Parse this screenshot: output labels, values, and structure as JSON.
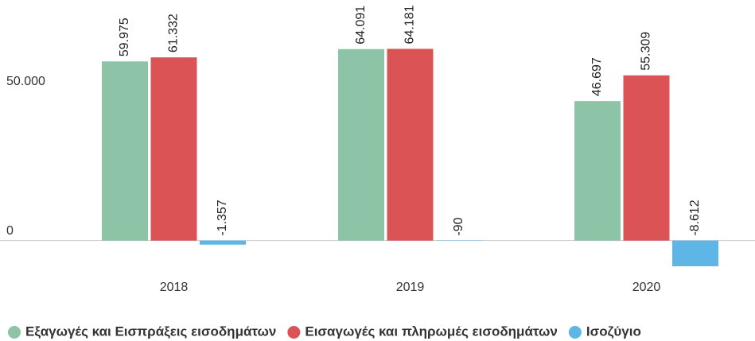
{
  "chart_data": {
    "type": "bar",
    "categories": [
      "2018",
      "2019",
      "2020"
    ],
    "series": [
      {
        "name": "Εξαγωγές και Εισπράξεις εισοδημάτων",
        "color": "#8dc3a7",
        "values": [
          59975,
          64091,
          46697
        ],
        "value_labels": [
          "59.975",
          "64.091",
          "46.697"
        ]
      },
      {
        "name": "Εισαγωγές και πληρωμές εισοδημάτων",
        "color": "#dc5356",
        "values": [
          61332,
          64181,
          55309
        ],
        "value_labels": [
          "61.332",
          "64.181",
          "55.309"
        ]
      },
      {
        "name": "Ισοζύγιο",
        "color": "#5db6e6",
        "values": [
          -1357,
          -90,
          -8612
        ],
        "value_labels": [
          "-1.357",
          "-90",
          "-8.612"
        ]
      }
    ],
    "ylim": [
      -11000,
      80000
    ],
    "yticks": [
      0,
      {
        "value": 50000,
        "label": "50.000"
      }
    ],
    "legend": "bottom"
  }
}
